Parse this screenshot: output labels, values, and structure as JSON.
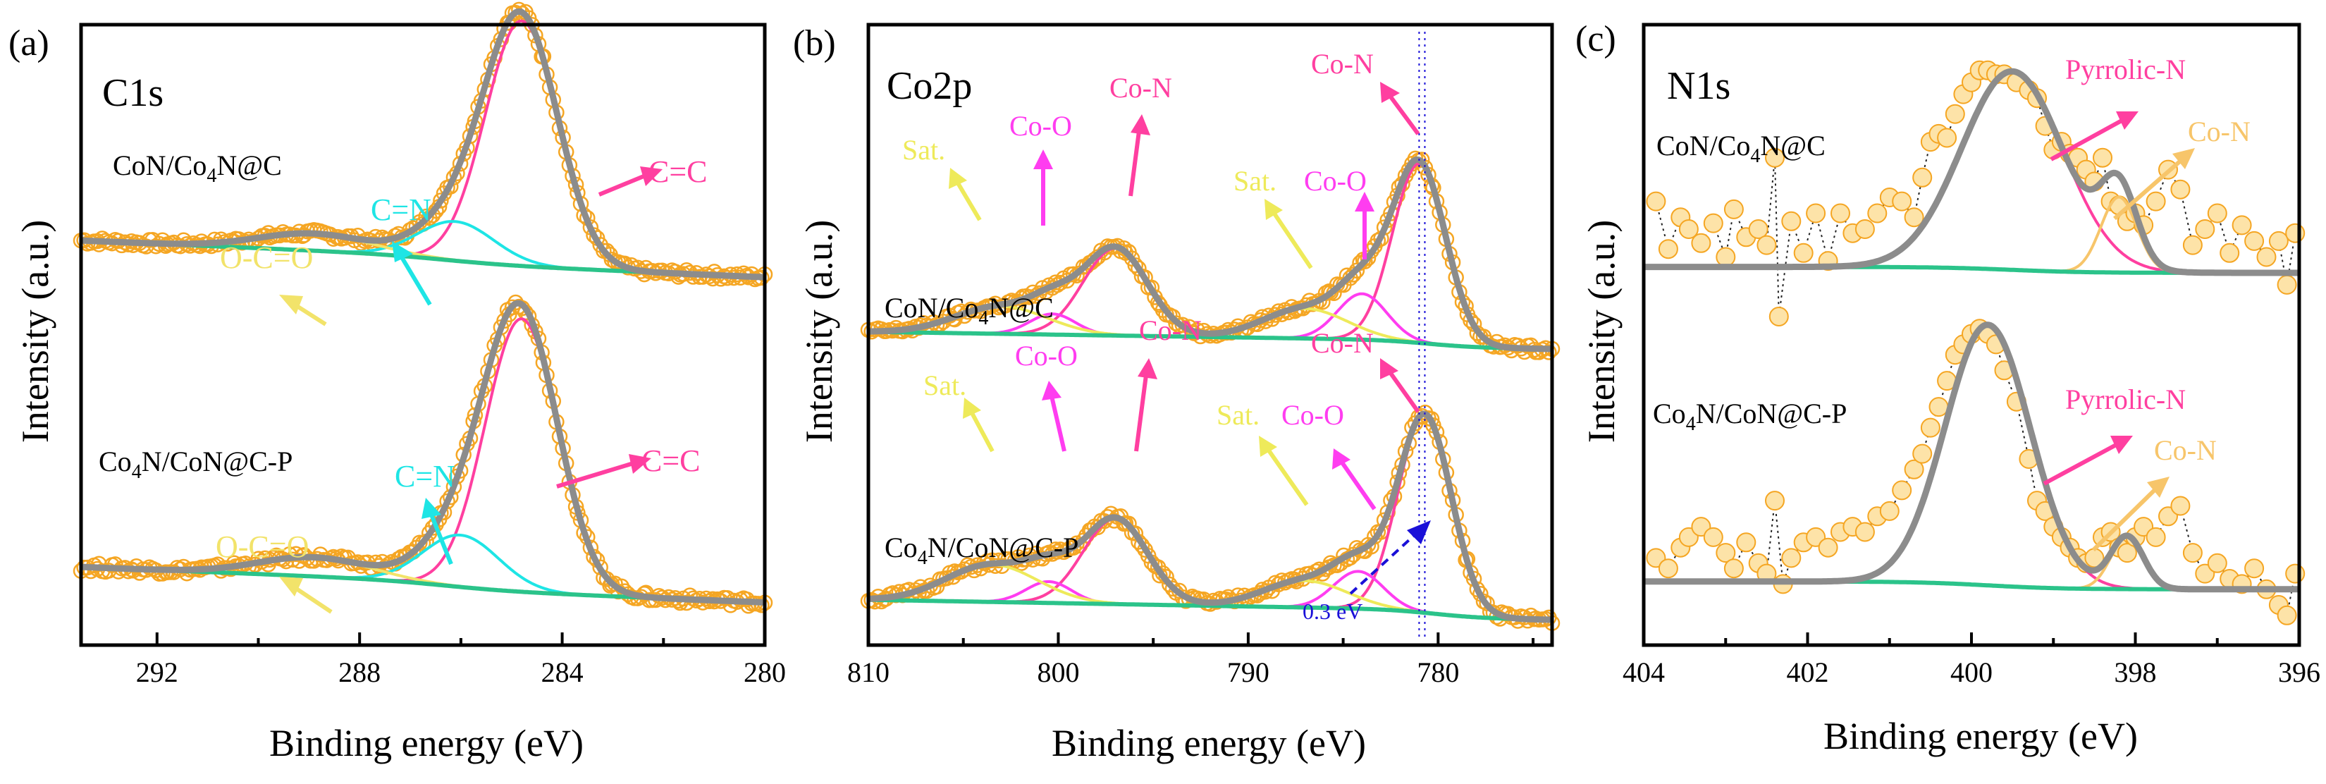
{
  "figure": {
    "panels": [
      {
        "letter": "(a)",
        "title": "C1s",
        "xlabel": "Binding energy (eV)",
        "ylabel": "Intensity (a.u.)",
        "sample_top": {
          "pre": "CoN/Co",
          "sub": "4",
          "post": "N@C"
        },
        "sample_bottom": {
          "pre": "Co",
          "sub": "4",
          "post": "N/CoN@C-P"
        }
      },
      {
        "letter": "(b)",
        "title": "Co2p",
        "xlabel": "Binding energy (eV)",
        "ylabel": "Intensity (a.u.)",
        "sample_top": {
          "pre": "CoN/Co",
          "sub": "4",
          "post": "N@C"
        },
        "sample_bottom": {
          "pre": "Co",
          "sub": "4",
          "post": "N/CoN@C-P"
        },
        "shift_label": "0.3 eV"
      },
      {
        "letter": "(c)",
        "title": "N1s",
        "xlabel": "Binding energy (eV)",
        "ylabel": "Intensity (a.u.)",
        "sample_top": {
          "pre": "CoN/Co",
          "sub": "4",
          "post": "N@C"
        },
        "sample_bottom": {
          "pre": "Co",
          "sub": "4",
          "post": "N/CoN@C-P"
        }
      }
    ]
  },
  "colors": {
    "envelope": "#8c8c8c",
    "background": "#2bc38a",
    "data": "#f5a623",
    "data_fill": "#fde3a8",
    "cc": "#ff3fa0",
    "cn": "#1ee5e5",
    "occ": "#f2e36a",
    "coo": "#ff3df0",
    "con": "#ff3fa0",
    "sat": "#eeea5a",
    "pyrrolic": "#ff3fa0",
    "con_n": "#f7c56a",
    "shift": "#1a10d8"
  },
  "chart_data": [
    {
      "type": "line",
      "title": "C1s",
      "xlabel": "Binding energy (eV)",
      "ylabel": "Intensity (a.u.)",
      "xlim": [
        293.5,
        280
      ],
      "xticks": [
        292,
        288,
        284,
        280
      ],
      "ylim": [
        0,
        1
      ],
      "series": [
        {
          "sample": "CoN/Co4N@C",
          "offset": 0.585,
          "scale": 0.395,
          "slope": 0.012,
          "base": 0.02,
          "b_center": 286.3,
          "b_width": 1.6,
          "components": [
            {
              "name": "C=C",
              "center": 284.8,
              "height": 1.0,
              "sigma": 0.72,
              "color": "cc"
            },
            {
              "name": "C=N",
              "center": 286.1,
              "height": 0.16,
              "sigma": 0.75,
              "color": "cn"
            },
            {
              "name": "O-C=O",
              "center": 288.9,
              "height": 0.07,
              "sigma": 1.1,
              "color": "occ"
            }
          ]
        },
        {
          "sample": "Co4N/CoN@C-P",
          "offset": 0.06,
          "scale": 0.44,
          "slope": 0.01,
          "base": 0.02,
          "b_center": 286.3,
          "b_width": 1.6,
          "components": [
            {
              "name": "C=C",
              "center": 284.8,
              "height": 1.0,
              "sigma": 0.72,
              "color": "cc"
            },
            {
              "name": "C=N",
              "center": 286.0,
              "height": 0.19,
              "sigma": 0.75,
              "color": "cn"
            },
            {
              "name": "O-C=O",
              "center": 288.9,
              "height": 0.07,
              "sigma": 1.1,
              "color": "occ"
            }
          ]
        }
      ],
      "annotations": [
        "C=C",
        "C=N",
        "O-C=O"
      ]
    },
    {
      "type": "line",
      "title": "Co2p",
      "xlabel": "Binding energy (eV)",
      "ylabel": "Intensity (a.u.)",
      "xlim": [
        810,
        774
      ],
      "xticks": [
        810,
        800,
        790,
        780
      ],
      "ylim": [
        0,
        1
      ],
      "series": [
        {
          "sample": "CoN/Co4N@C",
          "offset": 0.455,
          "scale": 0.37,
          "slope": 0.0045,
          "base": 0.06,
          "b_center": 780.5,
          "b_width": 2.8,
          "components": [
            {
              "name": "Co-N",
              "center": 781.0,
              "height": 0.78,
              "sigma": 1.4,
              "color": "con"
            },
            {
              "name": "Co-O",
              "center": 784.0,
              "height": 0.2,
              "sigma": 1.3,
              "color": "coo"
            },
            {
              "name": "Sat.",
              "center": 787.0,
              "height": 0.13,
              "sigma": 2.2,
              "color": "sat"
            },
            {
              "name": "Co-N",
              "center": 797.0,
              "height": 0.38,
              "sigma": 1.7,
              "color": "con"
            },
            {
              "name": "Co-O",
              "center": 800.3,
              "height": 0.09,
              "sigma": 1.2,
              "color": "coo"
            },
            {
              "name": "Sat.",
              "center": 803.0,
              "height": 0.12,
              "sigma": 2.4,
              "color": "sat"
            }
          ]
        },
        {
          "sample": "Co4N/CoN@C-P",
          "offset": 0.015,
          "scale": 0.43,
          "slope": 0.0045,
          "base": 0.06,
          "b_center": 780.2,
          "b_width": 2.8,
          "components": [
            {
              "name": "Co-N",
              "center": 780.7,
              "height": 0.74,
              "sigma": 1.4,
              "color": "con"
            },
            {
              "name": "Co-O",
              "center": 784.2,
              "height": 0.14,
              "sigma": 1.3,
              "color": "coo"
            },
            {
              "name": "Sat.",
              "center": 787.0,
              "height": 0.1,
              "sigma": 2.2,
              "color": "sat"
            },
            {
              "name": "Co-N",
              "center": 797.0,
              "height": 0.32,
              "sigma": 1.7,
              "color": "con"
            },
            {
              "name": "Co-O",
              "center": 800.5,
              "height": 0.08,
              "sigma": 1.2,
              "color": "coo"
            },
            {
              "name": "Sat.",
              "center": 803.5,
              "height": 0.14,
              "sigma": 2.4,
              "color": "sat"
            }
          ]
        }
      ],
      "reference_lines_ev": [
        781.0,
        780.7
      ],
      "shift_ev": 0.3,
      "annotations": [
        "Sat.",
        "Co-O",
        "Co-N",
        "0.3 eV"
      ]
    },
    {
      "type": "line",
      "title": "N1s",
      "xlabel": "Binding energy (eV)",
      "ylabel": "Intensity (a.u.)",
      "xlim": [
        404,
        396
      ],
      "xticks": [
        404,
        402,
        400,
        398,
        396
      ],
      "ylim": [
        0,
        1
      ],
      "series": [
        {
          "sample": "CoN/Co4N@C",
          "offset": 0.6,
          "scale": 0.32,
          "slope": 0.0,
          "base": 0.0,
          "b_center": 399.5,
          "b_width": 1.0,
          "components": [
            {
              "name": "Pyrrolic-N",
              "center": 399.5,
              "height": 1.0,
              "sigma": 0.62,
              "color": "pyrrolic"
            },
            {
              "name": "Co-N",
              "center": 398.2,
              "height": 0.38,
              "sigma": 0.22,
              "color": "con_n"
            }
          ],
          "points": [
            [
              403.85,
              0.36
            ],
            [
              403.7,
              0.12
            ],
            [
              403.55,
              0.28
            ],
            [
              403.45,
              0.22
            ],
            [
              403.3,
              0.15
            ],
            [
              403.15,
              0.25
            ],
            [
              403.0,
              0.08
            ],
            [
              402.9,
              0.32
            ],
            [
              402.75,
              0.18
            ],
            [
              402.6,
              0.22
            ],
            [
              402.5,
              0.14
            ],
            [
              402.4,
              0.58
            ],
            [
              402.35,
              -0.22
            ],
            [
              402.2,
              0.26
            ],
            [
              402.05,
              0.1
            ],
            [
              401.9,
              0.3
            ],
            [
              401.75,
              0.06
            ],
            [
              401.6,
              0.3
            ],
            [
              401.45,
              0.2
            ],
            [
              401.3,
              0.22
            ],
            [
              401.15,
              0.3
            ],
            [
              401.0,
              0.38
            ],
            [
              400.85,
              0.36
            ],
            [
              400.7,
              0.28
            ],
            [
              400.6,
              0.48
            ],
            [
              400.5,
              0.66
            ],
            [
              400.4,
              0.7
            ],
            [
              400.3,
              0.68
            ],
            [
              400.2,
              0.8
            ],
            [
              400.1,
              0.9
            ],
            [
              400.0,
              0.96
            ],
            [
              399.9,
              1.02
            ],
            [
              399.8,
              1.02
            ],
            [
              399.7,
              1.0
            ],
            [
              399.6,
              1.0
            ],
            [
              399.45,
              0.96
            ],
            [
              399.3,
              0.92
            ],
            [
              399.2,
              0.88
            ],
            [
              399.1,
              0.74
            ],
            [
              399.0,
              0.62
            ],
            [
              398.9,
              0.66
            ],
            [
              398.8,
              0.6
            ],
            [
              398.7,
              0.58
            ],
            [
              398.6,
              0.52
            ],
            [
              398.5,
              0.46
            ],
            [
              398.4,
              0.58
            ],
            [
              398.3,
              0.36
            ],
            [
              398.2,
              0.34
            ],
            [
              398.1,
              0.26
            ],
            [
              398.0,
              0.3
            ],
            [
              397.9,
              0.24
            ],
            [
              397.75,
              0.36
            ],
            [
              397.6,
              0.52
            ],
            [
              397.45,
              0.42
            ],
            [
              397.3,
              0.14
            ],
            [
              397.15,
              0.22
            ],
            [
              397.0,
              0.3
            ],
            [
              396.85,
              0.1
            ],
            [
              396.7,
              0.24
            ],
            [
              396.55,
              0.16
            ],
            [
              396.4,
              0.08
            ],
            [
              396.25,
              0.16
            ],
            [
              396.15,
              -0.06
            ],
            [
              396.05,
              0.2
            ]
          ]
        },
        {
          "sample": "Co4N/CoN@C-P",
          "offset": 0.09,
          "scale": 0.42,
          "slope": 0.0,
          "base": 0.0,
          "b_center": 399.8,
          "b_width": 1.0,
          "components": [
            {
              "name": "Pyrrolic-N",
              "center": 399.8,
              "height": 1.0,
              "sigma": 0.52,
              "color": "pyrrolic"
            },
            {
              "name": "Co-N",
              "center": 398.1,
              "height": 0.2,
              "sigma": 0.2,
              "color": "con_n"
            }
          ],
          "points": [
            [
              403.85,
              0.12
            ],
            [
              403.7,
              0.08
            ],
            [
              403.55,
              0.16
            ],
            [
              403.45,
              0.2
            ],
            [
              403.3,
              0.24
            ],
            [
              403.15,
              0.2
            ],
            [
              403.0,
              0.14
            ],
            [
              402.9,
              0.08
            ],
            [
              402.75,
              0.18
            ],
            [
              402.6,
              0.1
            ],
            [
              402.5,
              0.06
            ],
            [
              402.4,
              0.34
            ],
            [
              402.3,
              0.02
            ],
            [
              402.2,
              0.12
            ],
            [
              402.05,
              0.18
            ],
            [
              401.9,
              0.2
            ],
            [
              401.75,
              0.16
            ],
            [
              401.6,
              0.22
            ],
            [
              401.45,
              0.24
            ],
            [
              401.3,
              0.22
            ],
            [
              401.15,
              0.28
            ],
            [
              401.0,
              0.3
            ],
            [
              400.85,
              0.38
            ],
            [
              400.7,
              0.46
            ],
            [
              400.6,
              0.52
            ],
            [
              400.5,
              0.62
            ],
            [
              400.4,
              0.7
            ],
            [
              400.3,
              0.8
            ],
            [
              400.2,
              0.9
            ],
            [
              400.1,
              0.94
            ],
            [
              400.0,
              0.98
            ],
            [
              399.9,
              1.0
            ],
            [
              399.8,
              0.98
            ],
            [
              399.7,
              0.94
            ],
            [
              399.6,
              0.84
            ],
            [
              399.45,
              0.72
            ],
            [
              399.3,
              0.5
            ],
            [
              399.2,
              0.34
            ],
            [
              399.1,
              0.3
            ],
            [
              399.0,
              0.24
            ],
            [
              398.9,
              0.2
            ],
            [
              398.8,
              0.16
            ],
            [
              398.7,
              0.12
            ],
            [
              398.6,
              0.1
            ],
            [
              398.5,
              0.12
            ],
            [
              398.4,
              0.2
            ],
            [
              398.3,
              0.22
            ],
            [
              398.2,
              0.16
            ],
            [
              398.1,
              0.14
            ],
            [
              398.0,
              0.2
            ],
            [
              397.9,
              0.24
            ],
            [
              397.75,
              0.2
            ],
            [
              397.6,
              0.28
            ],
            [
              397.45,
              0.32
            ],
            [
              397.3,
              0.14
            ],
            [
              397.15,
              0.06
            ],
            [
              397.0,
              0.1
            ],
            [
              396.85,
              0.04
            ],
            [
              396.7,
              0.02
            ],
            [
              396.55,
              0.08
            ],
            [
              396.4,
              0.0
            ],
            [
              396.25,
              -0.06
            ],
            [
              396.15,
              -0.1
            ],
            [
              396.05,
              0.06
            ]
          ]
        }
      ],
      "annotations": [
        "Pyrrolic-N",
        "Co-N"
      ]
    }
  ]
}
